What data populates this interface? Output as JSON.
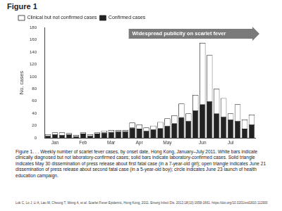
{
  "header": "Figure 1",
  "chart_data": {
    "type": "bar",
    "stacked": true,
    "ylabel": "No. cases",
    "annotation": "Widespread publicity on scarlet fever",
    "categories": [
      null,
      "Jan",
      null,
      null,
      null,
      "Feb",
      null,
      null,
      null,
      "Mar",
      null,
      null,
      null,
      "Apr",
      null,
      null,
      null,
      "May",
      null,
      null,
      null,
      null,
      "Jun",
      null,
      null,
      null,
      "Jul",
      null,
      null,
      null
    ],
    "series": [
      {
        "name": "Confirmed cases",
        "color": "#222222",
        "values": [
          4,
          6,
          5,
          6,
          3,
          7,
          4,
          7,
          9,
          10,
          11,
          11,
          17,
          15,
          12,
          14,
          16,
          20,
          24,
          34,
          28,
          45,
          55,
          60,
          40,
          35,
          30,
          28,
          15,
          22
        ]
      },
      {
        "name": "Clinical but not confirmed cases",
        "color": "#ffffff",
        "values": [
          2,
          3,
          4,
          2,
          2,
          2,
          2,
          2,
          3,
          3,
          2,
          2,
          8,
          7,
          5,
          6,
          10,
          12,
          13,
          22,
          12,
          25,
          100,
          75,
          40,
          30,
          10,
          27,
          15,
          16
        ]
      }
    ],
    "ylim": [
      0,
      180
    ],
    "yticks": [
      0,
      20,
      40,
      60,
      80,
      100,
      120,
      140,
      160,
      180
    ],
    "grid": false,
    "legend": "top-left"
  },
  "caption": "Figure 1. . . Weekly number of scarlet fever cases, by onset date, Hong Kong, January–July 2011. White bars indicate clinically diagnosed but not laboratory-confirmed cases; solid bars indicate laboratory-confirmed cases. Solid triangle indicates May 30 dissemination of press release about first fatal case (in a 7-year-old girl); open triangle indicates June 21 dissemination of press release about second fatal case (in a 5-year-old boy); circle indicates June 23 launch of health education campaign.",
  "citation": "Lok C, Lo J, Li A, Lau M, Cheung T, Wong A, et al. Scarlet Fever Epidemic, Hong Kong, 2011. Emerg Infect Dis. 2012;18(10):1658-1661. https://doi.org/10.3201/eid1810.111900"
}
